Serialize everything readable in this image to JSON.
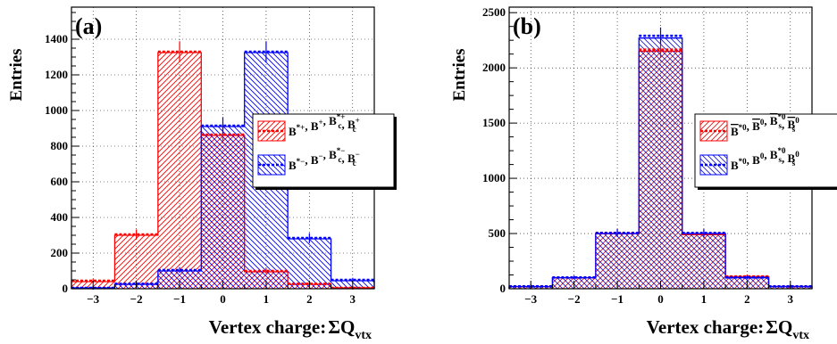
{
  "chart_data": [
    {
      "type": "histogram",
      "panel_label": "(a)",
      "xlabel": "Vertex charge:",
      "xlabel_math": "ΣQ",
      "xlabel_sub": "vtx",
      "ylabel": "Entries",
      "xlim": [
        -3.5,
        3.5
      ],
      "ylim": [
        0,
        1580
      ],
      "x_ticks": [
        -3,
        -2,
        -1,
        0,
        1,
        2,
        3
      ],
      "x_tick_labels": [
        "−3",
        "−2",
        "−1",
        "0",
        "1",
        "2",
        "3"
      ],
      "y_ticks": [
        0,
        200,
        400,
        600,
        800,
        1000,
        1200,
        1400
      ],
      "y_tick_labels": [
        "0",
        "200",
        "400",
        "600",
        "800",
        "1000",
        "1200",
        "1400"
      ],
      "grid": true,
      "bin_edges": [
        -3.5,
        -2.5,
        -1.5,
        -0.5,
        0.5,
        1.5,
        2.5,
        3.5
      ],
      "series": [
        {
          "legend_parts": [
            [
              "B",
              "*+",
              ""
            ],
            [
              "B",
              "+",
              ""
            ],
            [
              "B",
              "*+",
              "c"
            ],
            [
              "B",
              "+",
              "c"
            ]
          ],
          "color": "#ff0000",
          "hatch": "forward",
          "mc": [
            40,
            300,
            1325,
            860,
            95,
            25,
            5
          ],
          "data": [
            45,
            305,
            1330,
            865,
            100,
            28,
            5
          ]
        },
        {
          "legend_parts": [
            [
              "B",
              "*−",
              ""
            ],
            [
              "B",
              "−",
              ""
            ],
            [
              "B",
              "*−",
              "c"
            ],
            [
              "B",
              "−",
              "c"
            ]
          ],
          "color": "#0000ff",
          "hatch": "backward",
          "mc": [
            5,
            25,
            100,
            910,
            1325,
            280,
            45
          ],
          "data": [
            5,
            28,
            105,
            915,
            1330,
            285,
            50
          ]
        }
      ],
      "legend_position": "right"
    },
    {
      "type": "histogram",
      "panel_label": "(b)",
      "xlabel": "Vertex charge:",
      "xlabel_math": "ΣQ",
      "xlabel_sub": "vtx",
      "ylabel": "Entries",
      "xlim": [
        -3.5,
        3.5
      ],
      "ylim": [
        0,
        2550
      ],
      "x_ticks": [
        -3,
        -2,
        -1,
        0,
        1,
        2,
        3
      ],
      "x_tick_labels": [
        "−3",
        "−2",
        "−1",
        "0",
        "1",
        "2",
        "3"
      ],
      "y_ticks": [
        0,
        500,
        1000,
        1500,
        2000,
        2500
      ],
      "y_tick_labels": [
        "0",
        "500",
        "1000",
        "1500",
        "2000",
        "2500"
      ],
      "grid": true,
      "bin_edges": [
        -3.5,
        -2.5,
        -1.5,
        -0.5,
        0.5,
        1.5,
        2.5,
        3.5
      ],
      "series": [
        {
          "legend_parts": [
            [
              "B",
              "*0",
              "",
              "bar"
            ],
            [
              "B",
              "0",
              "",
              "bar"
            ],
            [
              "B",
              "*0",
              "s",
              "bar"
            ],
            [
              "B",
              "0",
              "s",
              "bar"
            ]
          ],
          "color": "#ff0000",
          "hatch": "forward",
          "mc": [
            20,
            100,
            500,
            2150,
            490,
            110,
            20
          ],
          "data": [
            22,
            102,
            505,
            2165,
            495,
            112,
            22
          ]
        },
        {
          "legend_parts": [
            [
              "B",
              "*0",
              ""
            ],
            [
              "B",
              "0",
              ""
            ],
            [
              "B",
              "*0",
              "s"
            ],
            [
              "B",
              "0",
              "s"
            ]
          ],
          "color": "#0000ff",
          "hatch": "backward",
          "mc": [
            20,
            100,
            500,
            2270,
            500,
            100,
            20
          ],
          "data": [
            22,
            102,
            505,
            2290,
            505,
            102,
            22
          ]
        }
      ],
      "legend_position": "right"
    }
  ]
}
